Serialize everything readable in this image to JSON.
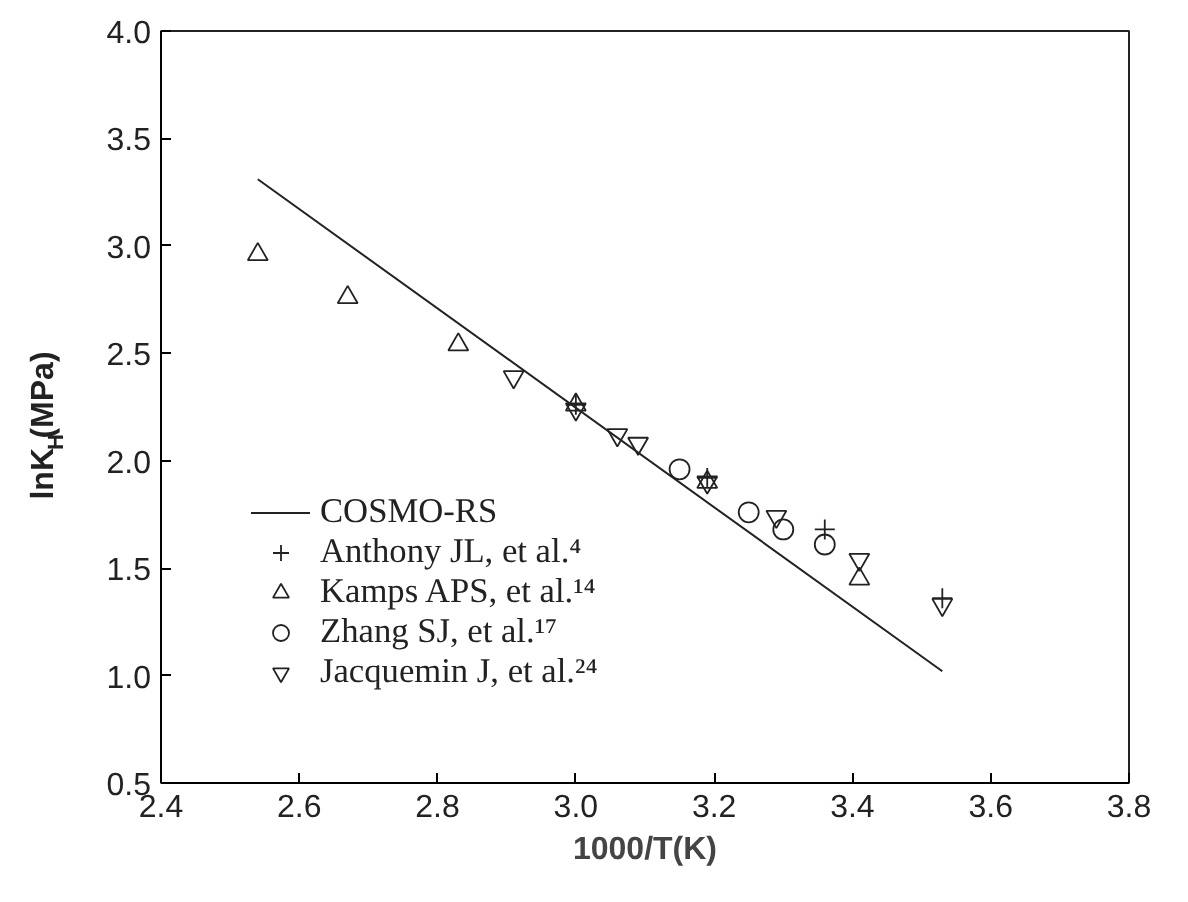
{
  "chart_data": {
    "type": "scatter",
    "xlabel": "1000/T(K)",
    "ylabel": "lnK$_{H}$(MPa)",
    "xlim": [
      2.4,
      3.8
    ],
    "xticks": [
      2.4,
      2.6,
      2.8,
      {
        "value": 3,
        "label": "3.0"
      },
      3.2,
      3.4,
      3.6,
      3.8
    ],
    "ylim": [
      0.5,
      4.0
    ],
    "yticks": [
      0.5,
      {
        "value": 1,
        "label": "1.0"
      },
      1.5,
      {
        "value": 2,
        "label": "2.0"
      },
      2.5,
      {
        "value": 3,
        "label": "3.0"
      },
      3.5,
      {
        "value": 4,
        "label": "4.0"
      }
    ],
    "grid": false,
    "legend": "bottom left",
    "series": [
      {
        "name": "COSMO-RS",
        "type": "line",
        "color": "#222222",
        "line_style": "solid",
        "marker": "none",
        "x": [
          2.54,
          3.53
        ],
        "values": [
          3.31,
          1.02
        ]
      },
      {
        "name": "Anthony JL, et al.⁴",
        "color": "#222222",
        "marker": "cross",
        "x": [
          3.0,
          3.19,
          3.36,
          3.53
        ],
        "values": [
          2.26,
          1.92,
          1.68,
          1.36
        ]
      },
      {
        "name": "Kamps APS, et al.¹⁴",
        "color": "#222222",
        "marker": "triangle",
        "x": [
          2.54,
          2.67,
          2.83,
          3.0,
          3.19,
          3.41
        ],
        "values": [
          2.96,
          2.76,
          2.54,
          2.26,
          1.9,
          1.45
        ]
      },
      {
        "name": "Zhang SJ, et al.¹⁷",
        "color": "#222222",
        "marker": "circle",
        "x": [
          3.15,
          3.25,
          3.3,
          3.36
        ],
        "values": [
          1.96,
          1.76,
          1.68,
          1.61
        ]
      },
      {
        "name": "Jacquemin J, et al.²⁴",
        "color": "#222222",
        "marker": "triangle_down",
        "x": [
          2.91,
          3.0,
          3.06,
          3.09,
          3.19,
          3.29,
          3.41,
          3.53
        ],
        "values": [
          2.39,
          2.24,
          2.12,
          2.08,
          1.9,
          1.74,
          1.54,
          1.33
        ]
      }
    ]
  }
}
